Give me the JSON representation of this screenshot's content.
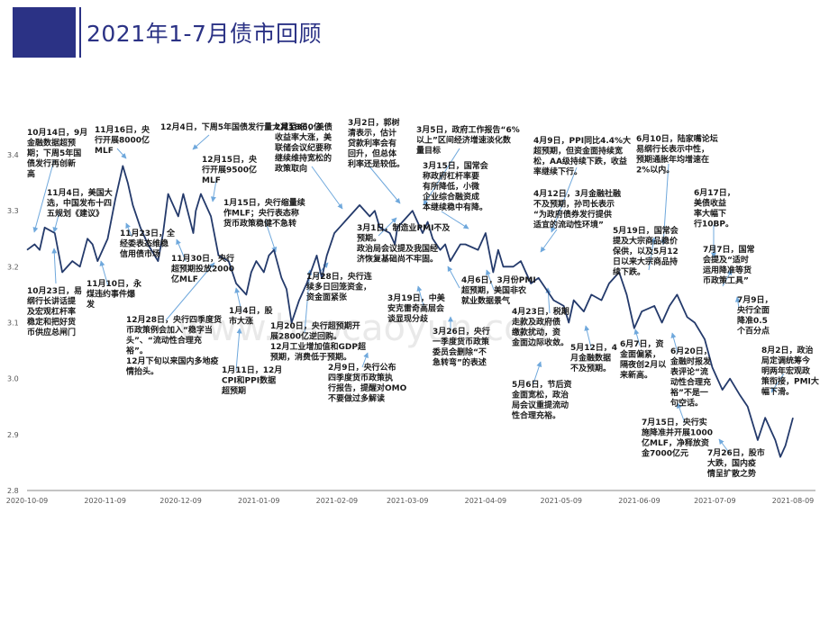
{
  "header": {
    "title": "2021年1-7月债市回顾"
  },
  "watermark": "www.baocaoyun.com",
  "colors": {
    "accent": "#2b3285",
    "line": "#243a6b",
    "arrow": "#6fa8dc"
  },
  "chart_data": {
    "type": "line",
    "title": "",
    "xlabel": "",
    "ylabel": "",
    "ylim": [
      2.8,
      3.4
    ],
    "yticks": [
      "3.4",
      "3.3",
      "3.2",
      "3.1",
      "3.0",
      "2.9",
      "2.8"
    ],
    "xticks": [
      "2020-10-09",
      "2020-11-09",
      "2020-12-09",
      "2021-01-09",
      "2021-02-09",
      "2021-03-09",
      "2021-04-09",
      "2021-05-09",
      "2021-06-09",
      "2021-07-09",
      "2021-08-09"
    ],
    "grid": false,
    "x": [
      "2020-10-09",
      "2020-10-12",
      "2020-10-14",
      "2020-10-16",
      "2020-10-20",
      "2020-10-23",
      "2020-10-27",
      "2020-10-30",
      "2020-11-02",
      "2020-11-04",
      "2020-11-06",
      "2020-11-10",
      "2020-11-13",
      "2020-11-16",
      "2020-11-18",
      "2020-11-20",
      "2020-11-23",
      "2020-11-26",
      "2020-11-30",
      "2020-12-02",
      "2020-12-04",
      "2020-12-08",
      "2020-12-10",
      "2020-12-14",
      "2020-12-15",
      "2020-12-17",
      "2020-12-21",
      "2020-12-24",
      "2020-12-28",
      "2020-12-31",
      "2021-01-04",
      "2021-01-06",
      "2021-01-08",
      "2021-01-11",
      "2021-01-13",
      "2021-01-15",
      "2021-01-18",
      "2021-01-20",
      "2021-01-22",
      "2021-01-25",
      "2021-01-28",
      "2021-02-01",
      "2021-02-03",
      "2021-02-05",
      "2021-02-08",
      "2021-02-10",
      "2021-02-18",
      "2021-02-22",
      "2021-02-24",
      "2021-02-26",
      "2021-03-02",
      "2021-03-04",
      "2021-03-05",
      "2021-03-09",
      "2021-03-11",
      "2021-03-15",
      "2021-03-17",
      "2021-03-19",
      "2021-03-22",
      "2021-03-24",
      "2021-03-26",
      "2021-03-30",
      "2021-04-01",
      "2021-04-06",
      "2021-04-09",
      "2021-04-12",
      "2021-04-14",
      "2021-04-16",
      "2021-04-20",
      "2021-04-23",
      "2021-04-27",
      "2021-04-30",
      "2021-05-06",
      "2021-05-10",
      "2021-05-12",
      "2021-05-14",
      "2021-05-18",
      "2021-05-21",
      "2021-05-25",
      "2021-05-28",
      "2021-06-01",
      "2021-06-04",
      "2021-06-07",
      "2021-06-10",
      "2021-06-15",
      "2021-06-18",
      "2021-06-21",
      "2021-06-24",
      "2021-06-28",
      "2021-07-01",
      "2021-07-05",
      "2021-07-08",
      "2021-07-12",
      "2021-07-15",
      "2021-07-19",
      "2021-07-22",
      "2021-07-26",
      "2021-07-29",
      "2021-08-02",
      "2021-08-04",
      "2021-08-06",
      "2021-08-09"
    ],
    "series": [
      {
        "values": [
          3.23,
          3.24,
          3.23,
          3.27,
          3.26,
          3.19,
          3.21,
          3.2,
          3.25,
          3.24,
          3.21,
          3.25,
          3.32,
          3.38,
          3.35,
          3.31,
          3.27,
          3.24,
          3.21,
          3.26,
          3.33,
          3.29,
          3.33,
          3.26,
          3.3,
          3.33,
          3.29,
          3.22,
          3.21,
          3.17,
          3.15,
          3.19,
          3.21,
          3.19,
          3.22,
          3.23,
          3.18,
          3.16,
          3.1,
          3.14,
          3.17,
          3.22,
          3.18,
          3.22,
          3.26,
          3.27,
          3.31,
          3.29,
          3.3,
          3.27,
          3.26,
          3.24,
          3.27,
          3.29,
          3.3,
          3.26,
          3.28,
          3.25,
          3.23,
          3.24,
          3.21,
          3.24,
          3.24,
          3.23,
          3.26,
          3.19,
          3.23,
          3.2,
          3.2,
          3.21,
          3.17,
          3.18,
          3.14,
          3.13,
          3.1,
          3.14,
          3.12,
          3.15,
          3.14,
          3.17,
          3.19,
          3.15,
          3.09,
          3.12,
          3.13,
          3.1,
          3.13,
          3.15,
          3.11,
          3.1,
          3.07,
          3.02,
          2.98,
          3.0,
          2.97,
          2.95,
          2.89,
          2.93,
          2.89,
          2.86,
          2.88,
          2.93
        ]
      }
    ],
    "annotations": [
      {
        "id": "a1",
        "text": [
          "10月14日，9月",
          "金融数据超预",
          "期；下周5年国",
          "债发行再创新",
          "高"
        ]
      },
      {
        "id": "a2",
        "text": [
          "11月16日，央",
          "行开展8000亿",
          "MLF"
        ]
      },
      {
        "id": "a3",
        "text": [
          "12月4日，下周5年国债发行量大减至360亿"
        ]
      },
      {
        "id": "a4",
        "text": [
          "2月18日，美债",
          "收益率大涨，美",
          "联储会议纪要称",
          "继续维持宽松的",
          "政策取向"
        ]
      },
      {
        "id": "a5",
        "text": [
          "3月2日，郭树",
          "清表示，估计",
          "贷款利率会有",
          "回升，但总体",
          "利率还是较低。"
        ]
      },
      {
        "id": "a6",
        "text": [
          "3月5日，政府工作报告“6%",
          "以上”区间经济增速淡化数",
          "量目标"
        ]
      },
      {
        "id": "a7",
        "text": [
          "4月9日，PPI同比4.4%大",
          "超预期，但资金面持续宽",
          "松，AA级持续下跌，收益",
          "率继续下行。"
        ]
      },
      {
        "id": "a8",
        "text": [
          "6月10日，陆家嘴论坛",
          "易纲行长表示中性，",
          "预期通胀年均增速在",
          "2%以内。"
        ]
      },
      {
        "id": "a9",
        "text": [
          "12月15日，央",
          "行开展9500亿",
          "MLF"
        ]
      },
      {
        "id": "a10",
        "text": [
          "11月4日，美国大",
          "选，中国发布十四",
          "五规划《建议》"
        ]
      },
      {
        "id": "a11",
        "text": [
          "3月15日，国常会",
          "称政府杠杆率要",
          "有所降低，小微",
          "企业综合融资成",
          "本继续稳中有降。"
        ]
      },
      {
        "id": "a12",
        "text": [
          "4月12日，3月金融社融",
          "不及预期，孙司长表示",
          "“为政府债券发行提供",
          "适宜的流动性环境”"
        ]
      },
      {
        "id": "a13",
        "text": [
          "6月17日，",
          "美债收益",
          "率大幅下",
          "行10BP。"
        ]
      },
      {
        "id": "a14",
        "text": [
          "1月15日，央行缩量续",
          "作MLF；央行表态称",
          "货币政策稳健不急转"
        ]
      },
      {
        "id": "a15",
        "text": [
          "11月23日，全",
          "经委表态维稳",
          "信用债市场"
        ]
      },
      {
        "id": "a16",
        "text": [
          "11月30日，央行",
          "超预期投放2000",
          "亿MLF"
        ]
      },
      {
        "id": "a17",
        "text": [
          "3月1日，制造业PMI不及",
          "预期。"
        ]
      },
      {
        "id": "a18",
        "text": [
          "政治局会议提及我国经",
          "济恢复基础尚不牢固。"
        ]
      },
      {
        "id": "a19",
        "text": [
          "5月19日，国常会",
          "提及大宗商品稳价",
          "保供，以及5月12",
          "日以来大宗商品持",
          "续下跌。"
        ]
      },
      {
        "id": "a20",
        "text": [
          "7月7日，国常",
          "会提及“适时",
          "运用降准等货",
          "币政策工具”"
        ]
      },
      {
        "id": "a21",
        "text": [
          "10月23日，易",
          "纲行长讲话提",
          "及宏观杠杆率",
          "稳定和把好货",
          "币供应总闸门"
        ]
      },
      {
        "id": "a22",
        "text": [
          "11月10日，永",
          "煤违约事件爆",
          "发"
        ]
      },
      {
        "id": "a23",
        "text": [
          "1月28日，央行连",
          "续多日回笼资金，",
          "资金面紧张"
        ]
      },
      {
        "id": "a24",
        "text": [
          "4月6日，3月份PMI",
          "超预期，美国非农",
          "就业数据景气"
        ]
      },
      {
        "id": "a25",
        "text": [
          "3月19日，中美",
          "安克雷奇高层会",
          "谈显现分歧"
        ]
      },
      {
        "id": "a26",
        "text": [
          "7月9日，",
          "央行全面",
          "降准0.5",
          "个百分点"
        ]
      },
      {
        "id": "a27",
        "text": [
          "12月28日，央行四季度货",
          "币政策例会加入“稳字当",
          "头”、“流动性合理充",
          "裕”。",
          "12月下旬以来国内多地疫",
          "情抬头。"
        ]
      },
      {
        "id": "a28",
        "text": [
          "1月4日，股",
          "市大涨"
        ]
      },
      {
        "id": "a29",
        "text": [
          "1月20日，央行超预期开",
          "展2800亿逆回购。",
          "12月工业增加值和GDP超",
          "预期，消费低于预期。"
        ]
      },
      {
        "id": "a30",
        "text": [
          "4月23日，税期",
          "走款及政府债",
          "缴款扰动，资",
          "金面边际收敛。"
        ]
      },
      {
        "id": "a31",
        "text": [
          "3月26日，央行",
          "一季度货币政策",
          "委员会删除“不",
          "急转弯”的表述"
        ]
      },
      {
        "id": "a32",
        "text": [
          "5月12日，4",
          "月金融数据",
          "不及预期。"
        ]
      },
      {
        "id": "a33",
        "text": [
          "6月7日，资",
          "金面偏紧，",
          "隔夜创2月以",
          "来新高。"
        ]
      },
      {
        "id": "a34",
        "text": [
          "6月20日，",
          "金融时报发",
          "表评论“流",
          "动性合理充",
          "裕”不是一",
          "句空话。"
        ]
      },
      {
        "id": "a35",
        "text": [
          "8月2日，政治",
          "局定调统筹今",
          "明两年宏观政",
          "策衔接，PMI大",
          "幅下滑。"
        ]
      },
      {
        "id": "a36",
        "text": [
          "1月11日，12月",
          "CPI和PPI数据",
          "超预期"
        ]
      },
      {
        "id": "a37",
        "text": [
          "2月9日，央行公布",
          "四季度货币政策执",
          "行报告，提醒对OMO",
          "不要做过多解读"
        ]
      },
      {
        "id": "a38",
        "text": [
          "5月6日，节后资",
          "金面宽松，政治",
          "局会议重提流动",
          "性合理充裕。"
        ]
      },
      {
        "id": "a39",
        "text": [
          "7月15日，央行实",
          "施降准并开展1000",
          "亿MLF，净释放资",
          "金7000亿元"
        ]
      },
      {
        "id": "a40",
        "text": [
          "7月26日，股市",
          "大跌，国内疫",
          "情呈扩散之势"
        ]
      }
    ]
  }
}
